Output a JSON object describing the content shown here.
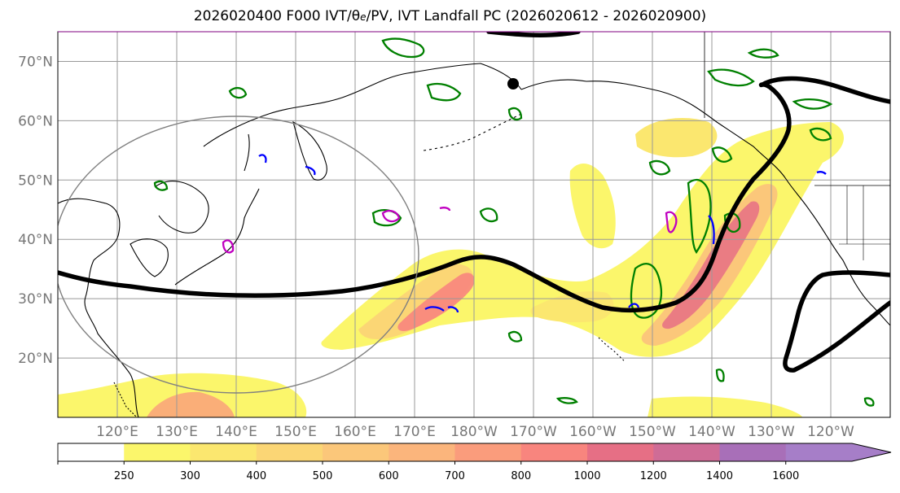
{
  "figure": {
    "title_prefix": "2026020400 F000 IVT/",
    "title_theta": "θ",
    "title_theta_sub": "e",
    "title_suffix": "/PV, IVT Landfall PC (2026020612 - 2026020900)"
  },
  "axes": {
    "lat_labels": [
      "70°N",
      "60°N",
      "50°N",
      "40°N",
      "30°N",
      "20°N"
    ],
    "lat_values": [
      70,
      60,
      50,
      40,
      30,
      20
    ],
    "lon_labels": [
      "120°E",
      "130°E",
      "140°E",
      "150°E",
      "160°E",
      "170°E",
      "180°W",
      "170°W",
      "160°W",
      "150°W",
      "140°W",
      "130°W",
      "120°W"
    ],
    "lon_values": [
      120,
      130,
      140,
      150,
      160,
      170,
      180,
      190,
      200,
      210,
      220,
      230,
      240
    ],
    "lat_range": [
      10,
      75
    ],
    "lon_range": [
      110,
      250
    ]
  },
  "colorbar": {
    "levels": [
      250,
      300,
      400,
      500,
      600,
      700,
      800,
      1000,
      1200,
      1400,
      1600
    ],
    "labels": [
      "250",
      "300",
      "400",
      "500",
      "600",
      "700",
      "800",
      "1000",
      "1200",
      "1400",
      "1600"
    ],
    "colors": [
      "#ffffff",
      "#fbf66b",
      "#fbe76f",
      "#fbd675",
      "#fbc77a",
      "#fbb57c",
      "#fa9c7c",
      "#f8857e",
      "#e66f85",
      "#cf6c96",
      "#a86fb8",
      "#a67ec8"
    ],
    "extend": "max"
  },
  "layers": {
    "ivt_fill": "IVT",
    "theta_e": "θe",
    "pv": "PV",
    "landfall_pc": "IVT Landfall PC"
  }
}
